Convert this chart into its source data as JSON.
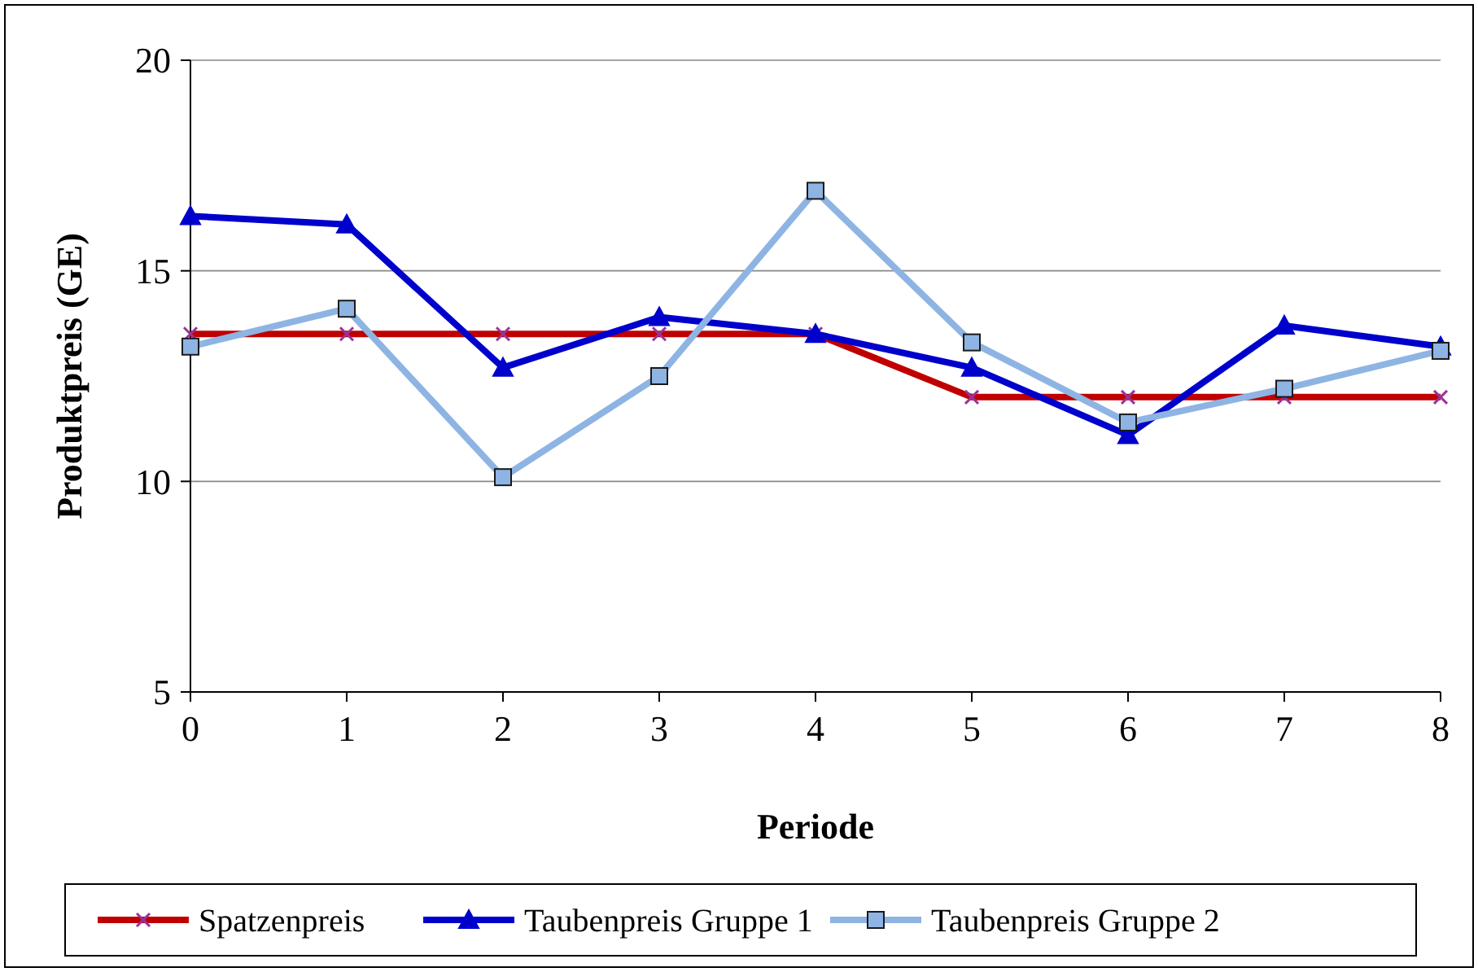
{
  "chart_data": {
    "type": "line",
    "xlabel": "Periode",
    "ylabel": "Produktpreis (GE)",
    "x": [
      0,
      1,
      2,
      3,
      4,
      5,
      6,
      7,
      8
    ],
    "xlim": [
      0,
      8
    ],
    "xticks": [
      0,
      1,
      2,
      3,
      4,
      5,
      6,
      7,
      8
    ],
    "ylim": [
      5,
      20
    ],
    "yticks": [
      5,
      10,
      15,
      20
    ],
    "grid": "y",
    "legend": "bottom",
    "series": [
      {
        "name": "Spatzenpreis",
        "color": "#c00000",
        "marker": "cross",
        "values": [
          13.5,
          13.5,
          13.5,
          13.5,
          13.5,
          12,
          12,
          12,
          12
        ]
      },
      {
        "name": "Taubenpreis Gruppe 1",
        "color": "#0000cc",
        "marker": "triangle",
        "values": [
          16.3,
          16.1,
          12.7,
          13.9,
          13.5,
          12.7,
          11.1,
          13.7,
          13.2
        ]
      },
      {
        "name": "Taubenpreis Gruppe 2",
        "color": "#8eb4e3",
        "marker": "square",
        "values": [
          13.2,
          14.1,
          10.1,
          12.5,
          16.9,
          13.3,
          11.4,
          12.2,
          13.1
        ]
      }
    ]
  }
}
